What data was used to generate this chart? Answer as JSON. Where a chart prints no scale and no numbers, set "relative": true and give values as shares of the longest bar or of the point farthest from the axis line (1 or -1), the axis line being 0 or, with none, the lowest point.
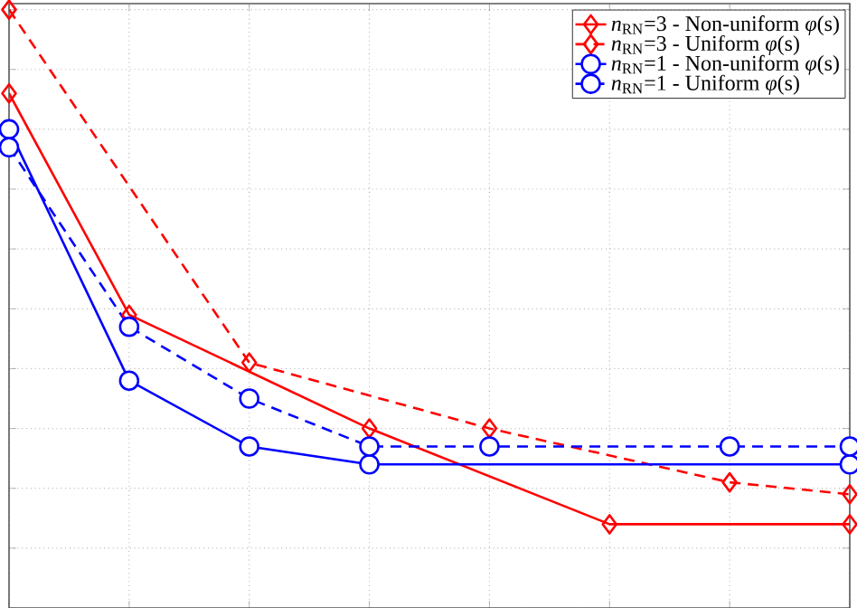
{
  "chart_data": {
    "type": "line",
    "relative": true,
    "grid": true,
    "legend": "top right",
    "categories": [
      null,
      null,
      null,
      null,
      null,
      null,
      null,
      null
    ],
    "series": [
      {
        "name": "*n*$_{RN}$=3 - Non-uniform *φ*(s)",
        "color": "#ff0000",
        "marker": "diamond",
        "line_style": "solid",
        "values": [
          0.86,
          0.49,
          null,
          0.3,
          null,
          0.14,
          null,
          0.14
        ]
      },
      {
        "name": "*n*$_{RN}$=3 - Uniform *φ*(s)",
        "color": "#ff0000",
        "marker": "diamond",
        "line_style": "dashed",
        "values": [
          1.0,
          null,
          0.41,
          null,
          0.3,
          null,
          0.21,
          0.19
        ]
      },
      {
        "name": "*n*$_{RN}$=1 - Non-uniform *φ*(s)",
        "color": "#0000ff",
        "marker": "circle",
        "line_style": "solid",
        "values": [
          0.8,
          0.38,
          0.27,
          0.24,
          null,
          null,
          null,
          0.24
        ]
      },
      {
        "name": "*n*$_{RN}$=1 - Uniform *φ*(s)",
        "color": "#0000ff",
        "marker": "circle",
        "line_style": "dashed",
        "values": [
          0.77,
          0.47,
          0.35,
          0.27,
          0.27,
          null,
          0.27,
          0.27
        ]
      }
    ]
  }
}
